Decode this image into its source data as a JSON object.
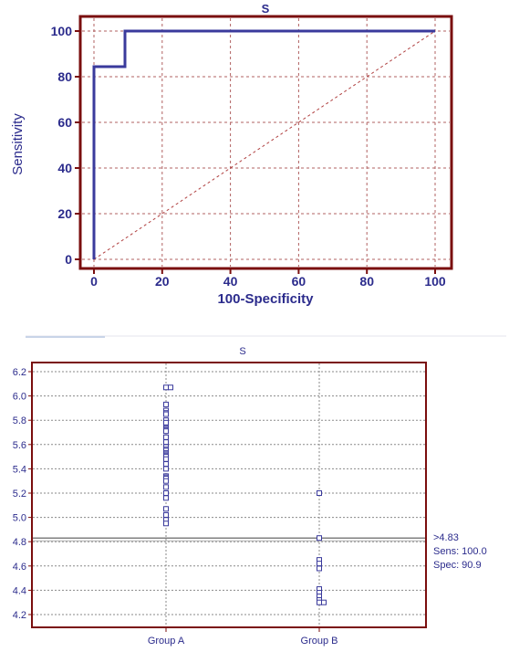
{
  "chart_data": [
    {
      "type": "line",
      "title": "S",
      "xlabel": "100-Specificity",
      "ylabel": "Sensitivity",
      "xlim": [
        0,
        100
      ],
      "ylim": [
        0,
        100
      ],
      "x_ticks": [
        "0",
        "20",
        "40",
        "60",
        "80",
        "100"
      ],
      "y_ticks": [
        "0",
        "20",
        "40",
        "60",
        "80",
        "100"
      ],
      "grid": true,
      "series": [
        {
          "x": [
            0,
            0,
            9.09,
            9.09,
            100
          ],
          "y": [
            0,
            84.4,
            84.4,
            100,
            100
          ],
          "color": "#3a3a9c"
        }
      ],
      "reference_line": {
        "x": [
          0,
          100
        ],
        "y": [
          0,
          100
        ],
        "color": "#b04040"
      },
      "colors": {
        "frame": "#7a0e0e",
        "curve": "#3a3a9c",
        "text": "#2b2b8c"
      }
    },
    {
      "type": "scatter",
      "title": "S",
      "categories": [
        "Group A",
        "Group B"
      ],
      "ylim": [
        4.2,
        6.2
      ],
      "y_ticks": [
        "4.2",
        "4.4",
        "4.6",
        "4.8",
        "5.0",
        "5.2",
        "5.4",
        "5.6",
        "5.8",
        "6.0",
        "6.2"
      ],
      "grid": true,
      "series": [
        {
          "category": "Group A",
          "values": [
            6.07,
            6.07,
            5.93,
            5.88,
            5.86,
            5.85,
            5.8,
            5.78,
            5.74,
            5.73,
            5.72,
            5.71,
            5.66,
            5.62,
            5.58,
            5.56,
            5.55,
            5.53,
            5.52,
            5.51,
            5.5,
            5.48,
            5.44,
            5.4,
            5.34,
            5.33,
            5.32,
            5.3,
            5.25,
            5.2,
            5.16,
            5.07,
            5.02,
            4.98,
            4.95
          ]
        },
        {
          "category": "Group B",
          "values": [
            5.2,
            4.83,
            4.65,
            4.62,
            4.58,
            4.41,
            4.38,
            4.35,
            4.32,
            4.3,
            4.3
          ]
        }
      ],
      "cutoff": 4.83,
      "annotations": [
        ">4.83",
        "Sens: 100.0",
        "Spec: 90.9"
      ],
      "colors": {
        "frame": "#7a0e0e",
        "marker": "#3a3a9c",
        "cutoff_line": "#555555"
      }
    }
  ]
}
